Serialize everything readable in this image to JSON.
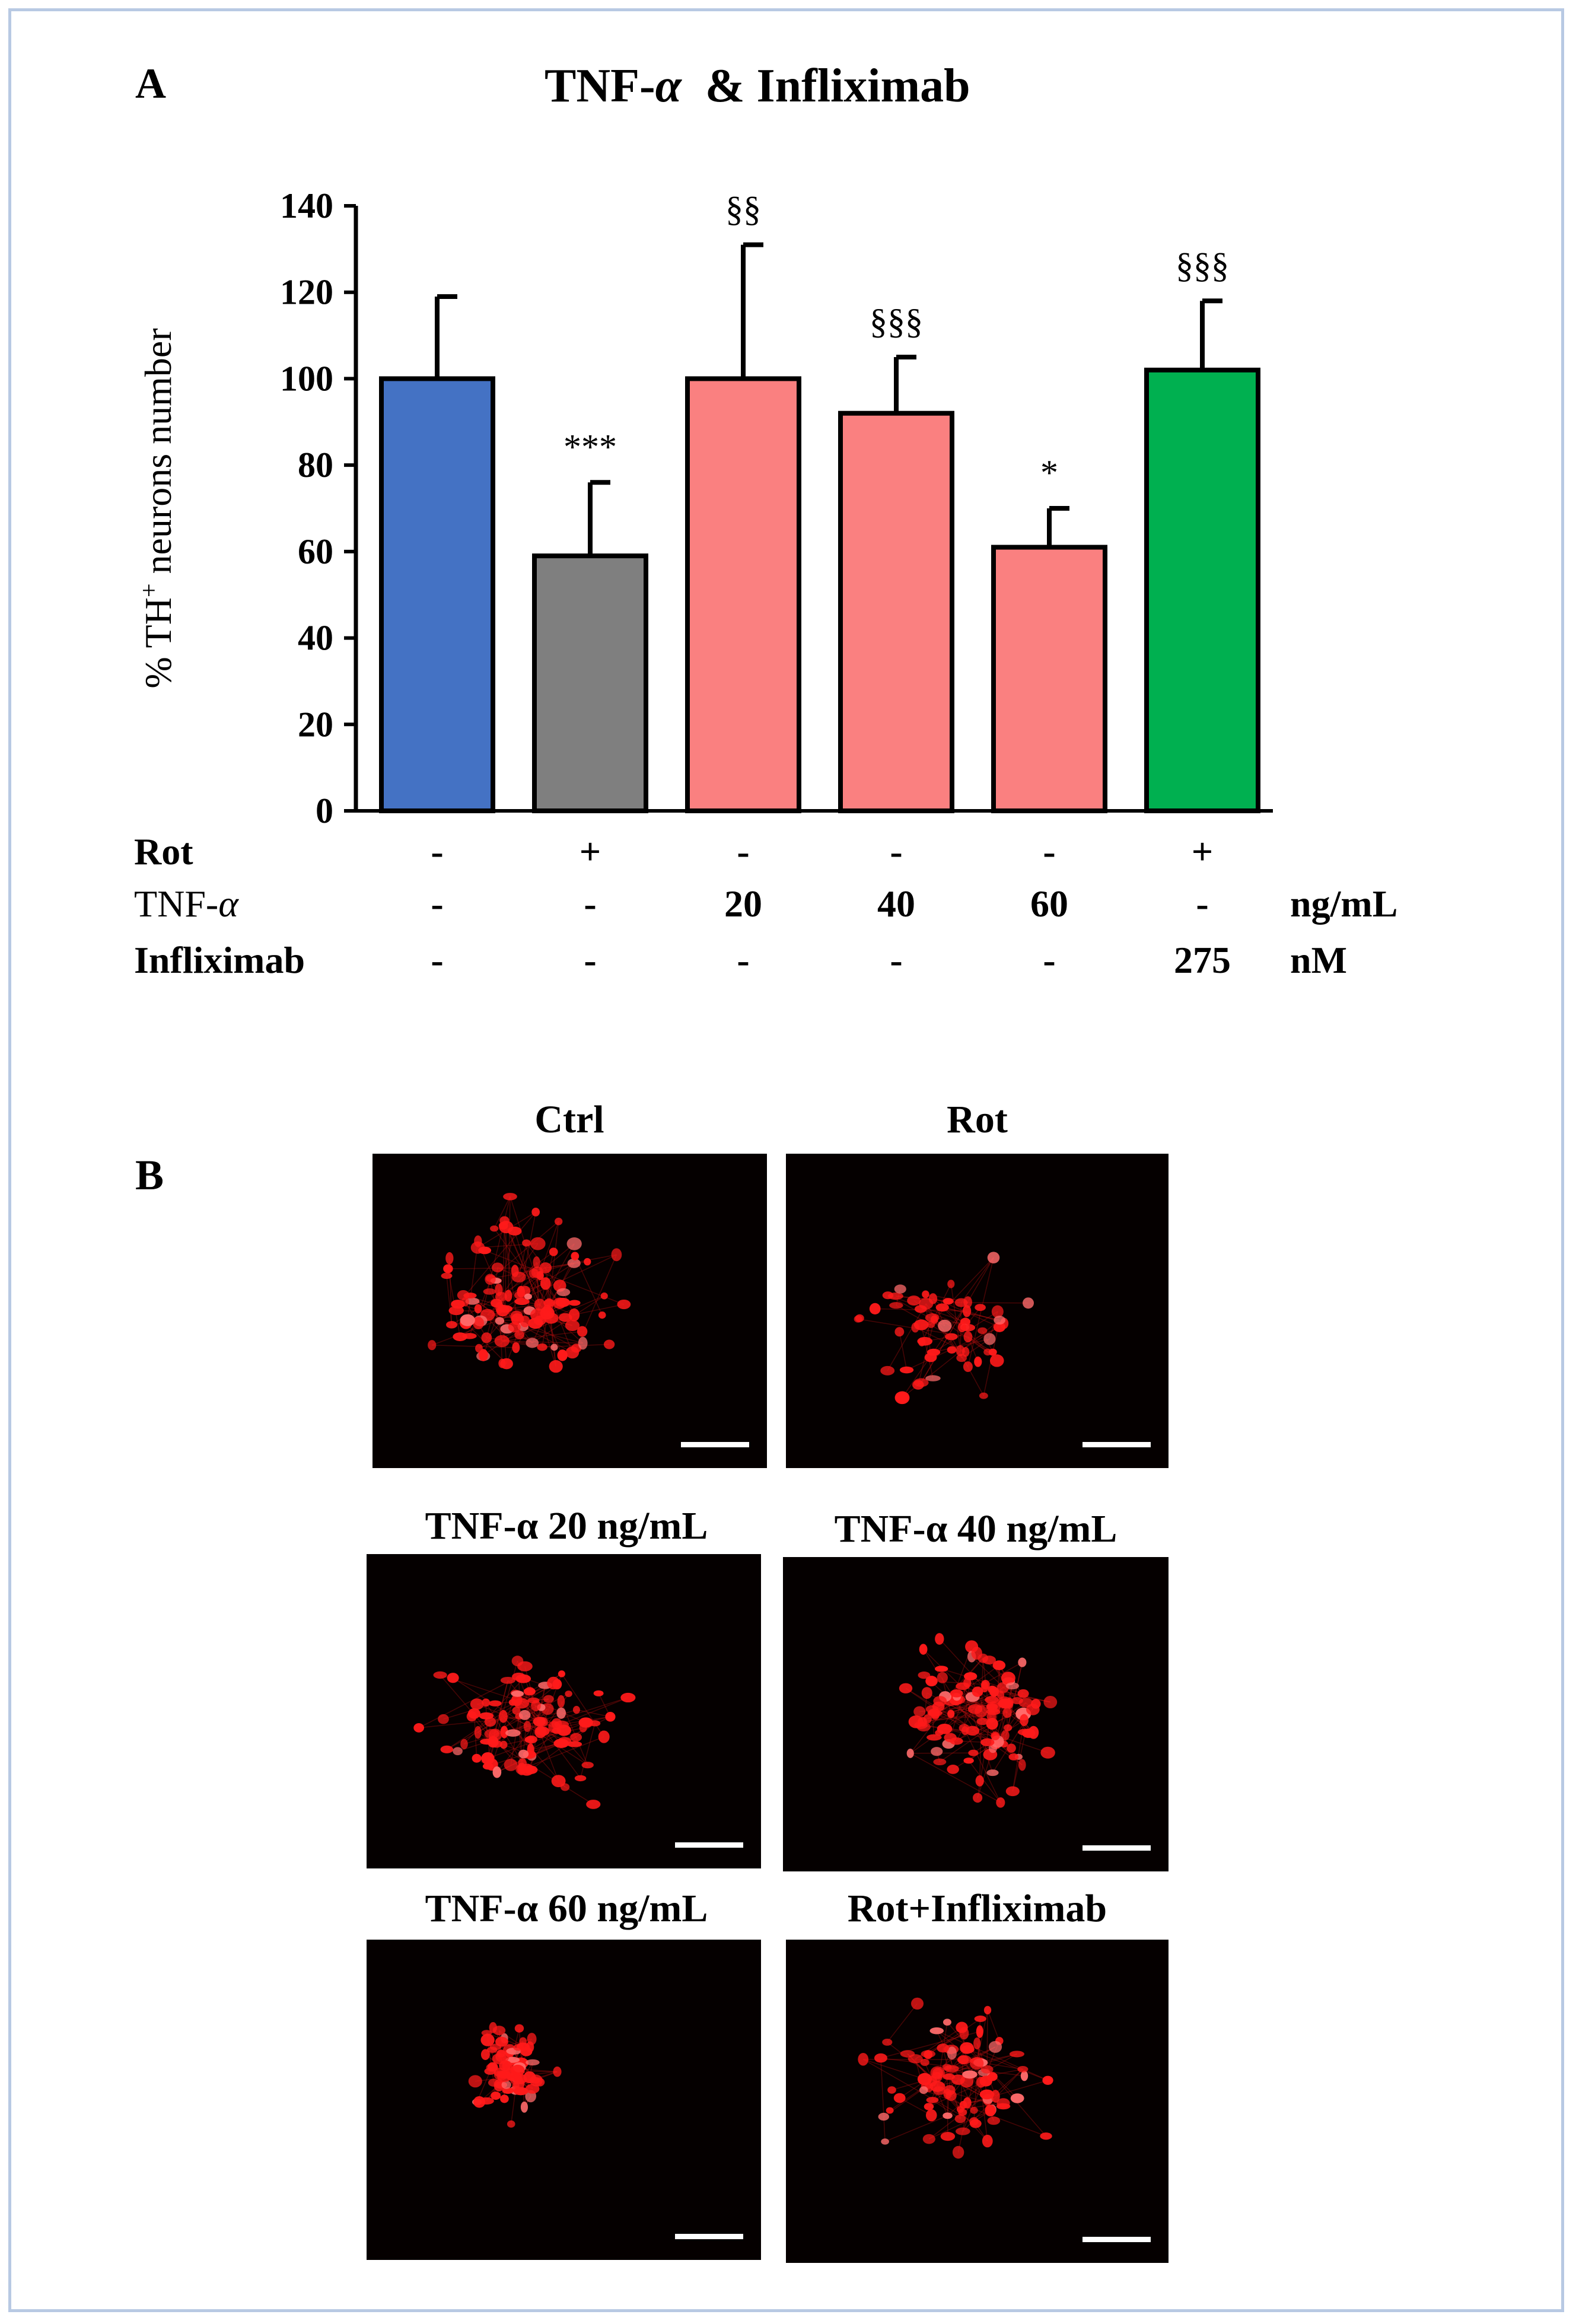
{
  "panel_a": {
    "letter": "A",
    "title_prefix": "TNF-",
    "title_alpha": "α",
    "title_suffix": "  & Infliximab"
  },
  "chart_data": {
    "type": "bar",
    "title": "TNF-α  & Infliximab",
    "ylabel_prefix": "% TH",
    "ylabel_sup": "+",
    "ylabel_suffix": " neurons number",
    "ylim": [
      0,
      140
    ],
    "y_ticks": [
      0,
      20,
      40,
      60,
      80,
      100,
      120,
      140
    ],
    "grid": false,
    "bars": [
      {
        "value": 100,
        "error": 19,
        "color": "#4472c4",
        "annotation": ""
      },
      {
        "value": 59,
        "error": 17,
        "color": "#7f7f7f",
        "annotation": "***"
      },
      {
        "value": 100,
        "error": 31,
        "color": "#fa8080",
        "annotation": "§§"
      },
      {
        "value": 92,
        "error": 13,
        "color": "#fa8080",
        "annotation": "§§§"
      },
      {
        "value": 61,
        "error": 9,
        "color": "#fa8080",
        "annotation": "*"
      },
      {
        "value": 102,
        "error": 16,
        "color": "#00b050",
        "annotation": "§§§"
      }
    ],
    "conditions": [
      {
        "label": "Rot",
        "label_italic_alpha": false,
        "values": [
          "-",
          "+",
          "-",
          "-",
          "-",
          "+"
        ],
        "unit": ""
      },
      {
        "label": "TNF-",
        "label_italic_alpha": true,
        "values": [
          "-",
          "-",
          "20",
          "40",
          "60",
          "-"
        ],
        "unit": "ng/mL"
      },
      {
        "label": "Infliximab",
        "label_italic_alpha": false,
        "values": [
          "-",
          "-",
          "-",
          "-",
          "-",
          "275"
        ],
        "unit": "nM"
      }
    ]
  },
  "panel_b": {
    "letter": "B",
    "images": [
      {
        "title": "Ctrl"
      },
      {
        "title": "Rot"
      },
      {
        "title": "TNF-α 20 ng/mL"
      },
      {
        "title": "TNF-α 40 ng/mL"
      },
      {
        "title": "TNF-α 60 ng/mL"
      },
      {
        "title": "Rot+Infliximab"
      }
    ]
  },
  "colors": {
    "frame": "#b8c9e3",
    "ctrl": "#4472c4",
    "rot": "#7f7f7f",
    "tnf": "#fa8080",
    "infliximab": "#00b050",
    "stain": "#ff1a1a"
  }
}
